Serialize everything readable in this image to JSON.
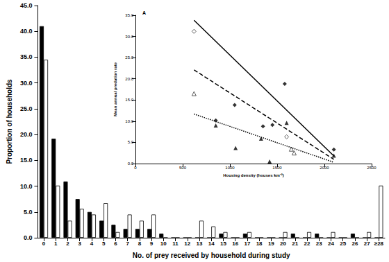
{
  "chart_data": [
    {
      "type": "bar",
      "x_label": "No. of prey received by household during study",
      "y_label": "Proportion of households",
      "categories": [
        "0",
        "1",
        "2",
        "3",
        "4",
        "5",
        "6",
        "7",
        "8",
        "9",
        "10",
        "11",
        "12",
        "13",
        "14",
        "15",
        "16",
        "17",
        "18",
        "19",
        "20",
        "21",
        "22",
        "23",
        "24",
        "25",
        "26",
        "27",
        "≥28"
      ],
      "series": [
        {
          "color": "#000000",
          "values": [
            41.0,
            19.2,
            10.9,
            7.5,
            5.0,
            3.3,
            2.5,
            1.7,
            1.7,
            1.7,
            0.8,
            0,
            0,
            0,
            0,
            0.8,
            0,
            0.8,
            0,
            0,
            0,
            0.8,
            0,
            0.8,
            0,
            0,
            0.8,
            0,
            0
          ]
        },
        {
          "color": "#ffffff",
          "values": [
            34.5,
            10.1,
            3.3,
            5.6,
            4.5,
            6.7,
            1.1,
            4.5,
            3.3,
            4.5,
            0,
            0,
            0,
            3.3,
            2.2,
            1.1,
            0,
            1.1,
            0,
            0,
            1.1,
            0,
            1.1,
            0,
            1.1,
            0,
            0,
            1.1,
            10.1
          ]
        }
      ],
      "ylim": [
        0,
        45
      ],
      "yticks": [
        {
          "value": 0,
          "label": "0.0"
        },
        {
          "value": 5,
          "label": "5.0"
        },
        {
          "value": 10,
          "label": "10.0"
        },
        {
          "value": 15,
          "label": "15.0"
        },
        {
          "value": 20,
          "label": "20.0"
        },
        {
          "value": 25,
          "label": "25.0"
        },
        {
          "value": 30,
          "label": "30.0"
        },
        {
          "value": 35,
          "label": "35.0"
        },
        {
          "value": 40,
          "label": "40.0"
        },
        {
          "value": 45,
          "label": "45.0"
        }
      ],
      "grid": false
    },
    {
      "type": "scatter",
      "title": "A",
      "x_label": "Housing density (houses km⁻²)",
      "y_label": "Mean annual predation rate",
      "series": [
        {
          "type": "scatter",
          "marker": "diamond",
          "color": "#000000",
          "x": [
            850,
            1050,
            1350,
            1450,
            1580,
            2100
          ],
          "values": [
            10.2,
            13.8,
            8.8,
            9.1,
            18.8,
            3.3
          ]
        },
        {
          "type": "scatter",
          "marker": "diamond-open",
          "color": "#000000",
          "x": [
            620,
            1600
          ],
          "values": [
            31.2,
            6.3
          ]
        },
        {
          "type": "scatter",
          "marker": "triangle",
          "color": "#000000",
          "x": [
            850,
            1060,
            1330,
            1420,
            1600,
            2100
          ],
          "values": [
            9.0,
            3.7,
            5.9,
            0.5,
            9.6,
            1.9
          ]
        },
        {
          "type": "scatter",
          "marker": "triangle-open",
          "color": "#000000",
          "x": [
            620,
            1650,
            1680
          ],
          "values": [
            16.5,
            3.4,
            2.5
          ]
        },
        {
          "type": "line",
          "line_style": "solid",
          "color": "#000000",
          "x": [
            620,
            2100
          ],
          "values": [
            33.8,
            1.8
          ]
        },
        {
          "type": "line",
          "line_style": "dashed",
          "color": "#000000",
          "x": [
            620,
            2100
          ],
          "values": [
            22.1,
            1.0
          ]
        },
        {
          "type": "line",
          "line_style": "dotted",
          "color": "#000000",
          "x": [
            620,
            2100
          ],
          "values": [
            11.7,
            0.3
          ]
        }
      ],
      "xlim": [
        0,
        2500
      ],
      "xticks": [
        0,
        500,
        1000,
        1500,
        2000,
        2500
      ],
      "ylim": [
        0,
        35
      ],
      "yticks": [
        {
          "value": 0,
          "label": "0.0"
        },
        {
          "value": 5,
          "label": "5.0"
        },
        {
          "value": 10,
          "label": "10.0"
        },
        {
          "value": 15,
          "label": "15.0"
        },
        {
          "value": 20,
          "label": "20.0"
        },
        {
          "value": 25,
          "label": "25.0"
        },
        {
          "value": 30,
          "label": "30.0"
        },
        {
          "value": 35,
          "label": "35.0"
        }
      ],
      "grid": false
    }
  ]
}
